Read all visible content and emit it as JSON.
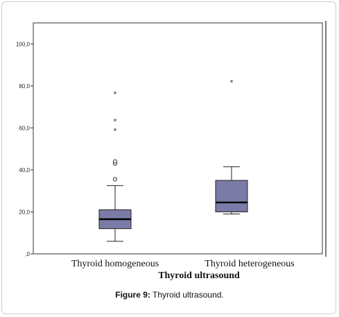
{
  "caption": {
    "figure_label": "Figure 9:",
    "text": "Thyroid ultrasound."
  },
  "chart_data": {
    "type": "boxplot",
    "xlabel": "Thyroid ultrasound",
    "ylabel": "",
    "ylim": [
      0,
      110
    ],
    "yticks": [
      0,
      20,
      40,
      60,
      80,
      100
    ],
    "ytick_labels": [
      ",0",
      "20,0",
      "40,0",
      "60,0",
      "80,0",
      "100,0"
    ],
    "categories": [
      "Thyroid homogeneous",
      "Thyroid heterogeneous"
    ],
    "box_color": "#7b7ba8",
    "series": [
      {
        "category": "Thyroid homogeneous",
        "whisker_low": 6,
        "q1": 12,
        "median": 16.5,
        "q3": 21,
        "whisker_high": 32.5,
        "outliers": [
          35.5
        ],
        "extremes": [
          43,
          44,
          59,
          63.5,
          76.5
        ]
      },
      {
        "category": "Thyroid heterogeneous",
        "whisker_low": 19,
        "q1": 20,
        "median": 24.5,
        "q3": 35,
        "whisker_high": 41.5,
        "outliers": [],
        "extremes": [
          82
        ]
      }
    ]
  }
}
